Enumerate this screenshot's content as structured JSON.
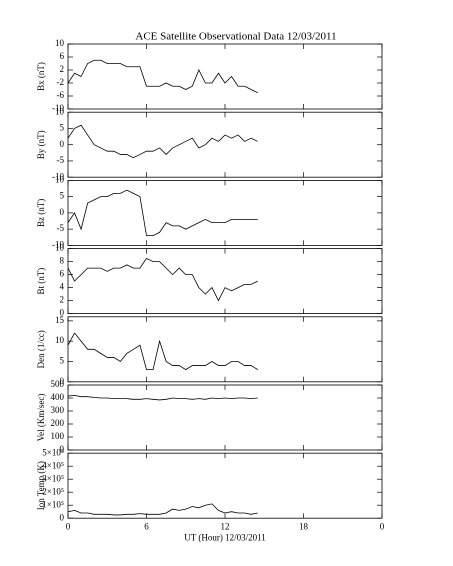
{
  "chart_data": [
    {
      "type": "line",
      "title": "ACE Satellite Observational Data   12/03/2011",
      "ylabel": "Bx (nT)",
      "color": "#000000",
      "xlim": [
        0,
        24
      ],
      "ylim": [
        -10,
        10
      ],
      "yticks": [
        -10,
        -6,
        -2,
        2,
        6,
        10
      ],
      "x": [
        0,
        0.5,
        1,
        1.5,
        2,
        2.5,
        3,
        3.5,
        4,
        4.5,
        5,
        5.5,
        6,
        6.5,
        7,
        7.5,
        8,
        8.5,
        9,
        9.5,
        10,
        10.5,
        11,
        11.5,
        12,
        12.5,
        13,
        13.5,
        14,
        14.5
      ],
      "values": [
        -2,
        1,
        0,
        4,
        5,
        5,
        4,
        4,
        4,
        3,
        3,
        3,
        -3,
        -3,
        -3,
        -2,
        -3,
        -3,
        -4,
        -3,
        2,
        -2,
        -2,
        1,
        -2,
        0,
        -3,
        -3,
        -4,
        -5
      ]
    },
    {
      "type": "line",
      "ylabel": "By (nT)",
      "color": "#000000",
      "xlim": [
        0,
        24
      ],
      "ylim": [
        -10,
        10
      ],
      "yticks": [
        -10,
        -5,
        0,
        5,
        10
      ],
      "x": [
        0,
        0.5,
        1,
        1.5,
        2,
        2.5,
        3,
        3.5,
        4,
        4.5,
        5,
        5.5,
        6,
        6.5,
        7,
        7.5,
        8,
        8.5,
        9,
        9.5,
        10,
        10.5,
        11,
        11.5,
        12,
        12.5,
        13,
        13.5,
        14,
        14.5
      ],
      "values": [
        2,
        5,
        6,
        3,
        0,
        -1,
        -2,
        -2,
        -3,
        -3,
        -4,
        -3,
        -2,
        -2,
        -1,
        -3,
        -1,
        0,
        1,
        2,
        -1,
        0,
        2,
        1,
        3,
        2,
        3,
        1,
        2,
        1
      ]
    },
    {
      "type": "line",
      "ylabel": "Bz (nT)",
      "color": "#000000",
      "xlim": [
        0,
        24
      ],
      "ylim": [
        -10,
        10
      ],
      "yticks": [
        -10,
        -5,
        0,
        5,
        10
      ],
      "x": [
        0,
        0.5,
        1,
        1.5,
        2,
        2.5,
        3,
        3.5,
        4,
        4.5,
        5,
        5.5,
        6,
        6.5,
        7,
        7.5,
        8,
        8.5,
        9,
        9.5,
        10,
        10.5,
        11,
        11.5,
        12,
        12.5,
        13,
        13.5,
        14,
        14.5
      ],
      "values": [
        -3,
        0,
        -5,
        3,
        4,
        5,
        5,
        6,
        6,
        7,
        6,
        5,
        -7,
        -7,
        -6,
        -3,
        -4,
        -4,
        -5,
        -4,
        -3,
        -2,
        -3,
        -3,
        -3,
        -2,
        -2,
        -2,
        -2,
        -2
      ]
    },
    {
      "type": "line",
      "ylabel": "Bt (nT)",
      "color": "#000000",
      "xlim": [
        0,
        24
      ],
      "ylim": [
        0,
        10
      ],
      "yticks": [
        0,
        2,
        4,
        6,
        8,
        10
      ],
      "x": [
        0,
        0.5,
        1,
        1.5,
        2,
        2.5,
        3,
        3.5,
        4,
        4.5,
        5,
        5.5,
        6,
        6.5,
        7,
        7.5,
        8,
        8.5,
        9,
        9.5,
        10,
        10.5,
        11,
        11.5,
        12,
        12.5,
        13,
        13.5,
        14,
        14.5
      ],
      "values": [
        7,
        5,
        6,
        7,
        7,
        7,
        6.5,
        7,
        7,
        7.5,
        7,
        7,
        8.5,
        8,
        8,
        7,
        6,
        7,
        6,
        6,
        4,
        3,
        4,
        2,
        4,
        3.5,
        4,
        4.5,
        4.5,
        5
      ]
    },
    {
      "type": "line",
      "ylabel": "Den (1/cc)",
      "color": "#000000",
      "xlim": [
        0,
        24
      ],
      "ylim": [
        0,
        16
      ],
      "yticks": [
        0,
        5,
        10,
        15
      ],
      "x": [
        0,
        0.5,
        1,
        1.5,
        2,
        2.5,
        3,
        3.5,
        4,
        4.5,
        5,
        5.5,
        6,
        6.5,
        7,
        7.5,
        8,
        8.5,
        9,
        9.5,
        10,
        10.5,
        11,
        11.5,
        12,
        12.5,
        13,
        13.5,
        14,
        14.5
      ],
      "values": [
        9,
        12,
        10,
        8,
        8,
        7,
        6,
        6,
        5,
        7,
        8,
        9,
        3,
        3,
        10,
        5,
        4,
        4,
        3,
        4,
        4,
        4,
        5,
        4,
        4,
        5,
        5,
        4,
        4,
        3
      ]
    },
    {
      "type": "line",
      "ylabel": "Vel (Km/sec)",
      "color": "#000000",
      "xlim": [
        0,
        24
      ],
      "ylim": [
        0,
        500
      ],
      "yticks": [
        0,
        100,
        200,
        300,
        400,
        500
      ],
      "x": [
        0,
        0.5,
        1,
        1.5,
        2,
        2.5,
        3,
        3.5,
        4,
        4.5,
        5,
        5.5,
        6,
        6.5,
        7,
        7.5,
        8,
        8.5,
        9,
        9.5,
        10,
        10.5,
        11,
        11.5,
        12,
        12.5,
        13,
        13.5,
        14,
        14.5
      ],
      "values": [
        415,
        420,
        410,
        410,
        405,
        400,
        400,
        395,
        395,
        395,
        390,
        390,
        395,
        390,
        385,
        390,
        400,
        395,
        395,
        390,
        395,
        390,
        400,
        395,
        400,
        395,
        400,
        400,
        395,
        400
      ]
    },
    {
      "type": "line",
      "ylabel": "Ion Temp (K)",
      "xlabel": "UT (Hour)  12/03/2011",
      "color": "#000000",
      "xlim": [
        0,
        24
      ],
      "ylim": [
        0,
        500000
      ],
      "yticks": [
        0,
        {
          "value": 100000,
          "label": "1×10⁵"
        },
        {
          "value": 200000,
          "label": "2×10⁵"
        },
        {
          "value": 300000,
          "label": "3×10⁵"
        },
        {
          "value": 400000,
          "label": "4×10⁵"
        },
        {
          "value": 500000,
          "label": "5×10⁵"
        }
      ],
      "xticks": [
        0,
        6,
        12,
        18,
        {
          "value": 24,
          "label": "0"
        }
      ],
      "x": [
        0,
        0.5,
        1,
        1.5,
        2,
        2.5,
        3,
        3.5,
        4,
        4.5,
        5,
        5.5,
        6,
        6.5,
        7,
        7.5,
        8,
        8.5,
        9,
        9.5,
        10,
        10.5,
        11,
        11.5,
        12,
        12.5,
        13,
        13.5,
        14,
        14.5
      ],
      "values": [
        50000,
        60000,
        40000,
        40000,
        30000,
        30000,
        30000,
        25000,
        25000,
        30000,
        30000,
        35000,
        30000,
        30000,
        30000,
        40000,
        70000,
        60000,
        70000,
        90000,
        80000,
        100000,
        110000,
        60000,
        40000,
        50000,
        40000,
        40000,
        30000,
        40000
      ]
    }
  ]
}
